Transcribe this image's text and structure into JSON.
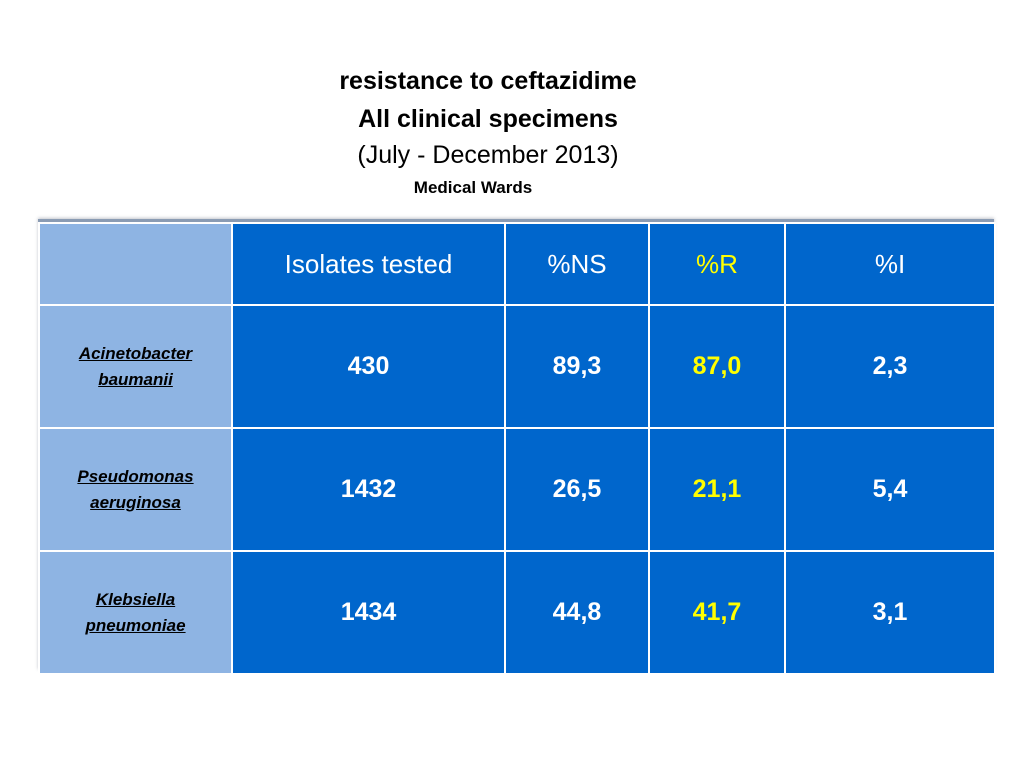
{
  "title": {
    "line1": "resistance to ceftazidime",
    "line2": "All clinical specimens",
    "line3": "(July - December 2013)"
  },
  "subtitle": "Medical Wards",
  "table": {
    "columns": [
      "",
      "Isolates tested",
      "%NS",
      "%R",
      "%I"
    ],
    "rows": [
      {
        "species_line1": "Acinetobacter",
        "species_line2": "baumanii",
        "isolates": "430",
        "ns": "89,3",
        "r": "87,0",
        "i": "2,3"
      },
      {
        "species_line1": "Pseudomonas",
        "species_line2": "aeruginosa",
        "isolates": "1432",
        "ns": "26,5",
        "r": "21,1",
        "i": "5,4"
      },
      {
        "species_line1": "Klebsiella",
        "species_line2": "pneumoniae",
        "isolates": "1434",
        "ns": "44,8",
        "r": "41,7",
        "i": "3,1"
      }
    ]
  },
  "colors": {
    "cell_blue": "#0066cc",
    "stub_light_blue": "#8eb4e3",
    "highlight_yellow": "#ffff00",
    "text_white": "#ffffff"
  }
}
